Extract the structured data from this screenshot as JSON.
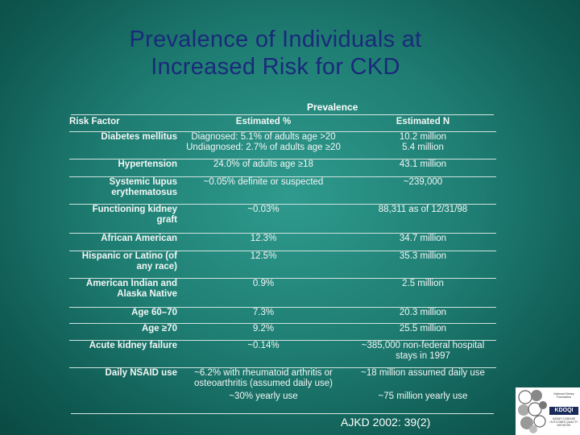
{
  "title_line1": "Prevalence of Individuals at",
  "title_line2": "Increased Risk for CKD",
  "prevalence_header": "Prevalence",
  "columns": {
    "factor": "Risk Factor",
    "pct": "Estimated %",
    "n": "Estimated N"
  },
  "rows": [
    {
      "factor": "Diabetes mellitus",
      "pct": "Diagnosed: 5.1% of adults age >20",
      "n": "10.2 million"
    },
    {
      "factor": "",
      "pct": "Undiagnosed: 2.7% of adults age ≥20",
      "n": "5.4 million"
    },
    {
      "factor": "Hypertension",
      "pct": "24.0% of adults age ≥18",
      "n": "43.1 million"
    },
    {
      "factor": "Systemic lupus erythematosus",
      "pct": "~0.05% definite or suspected",
      "n": "~239,000"
    },
    {
      "factor": "Functioning kidney graft",
      "pct": "~0.03%",
      "n": "88,311 as of 12/31/98"
    },
    {
      "factor": "African American",
      "pct": "12.3%",
      "n": "34.7 million"
    },
    {
      "factor": "Hispanic or Latino (of any race)",
      "pct": "12.5%",
      "n": "35.3 million"
    },
    {
      "factor": "American Indian and Alaska Native",
      "pct": "0.9%",
      "n": "2.5 million"
    },
    {
      "factor": "Age 60–70",
      "pct": "7.3%",
      "n": "20.3 million"
    },
    {
      "factor": "Age ≥70",
      "pct": "9.2%",
      "n": "25.5 million"
    },
    {
      "factor": "Acute kidney failure",
      "pct": "~0.14%",
      "n": "~385,000 non-federal hospital stays in 1997"
    },
    {
      "factor": "Daily NSAID use",
      "pct": "~6.2% with rheumatoid arthritis or osteoarthritis (assumed daily use)",
      "n": "~18 million assumed daily use"
    },
    {
      "factor": "",
      "pct": "~30% yearly use",
      "n": "~75 million yearly use"
    }
  ],
  "citation": "AJKD 2002: 39(2)",
  "logo": {
    "top_text": "National Kidney Foundation",
    "brand": "KDOQI",
    "sub_text": "KIDNEY DISEASE OUTCOMES QUALITY INITIATIVE"
  }
}
